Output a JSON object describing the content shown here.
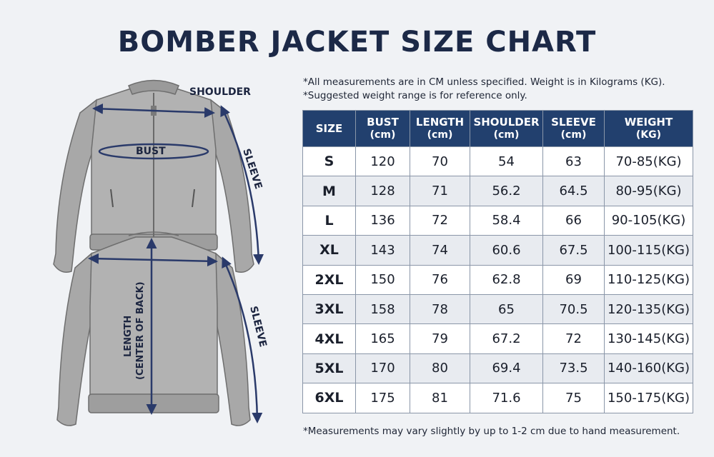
{
  "title": "BOMBER JACKET SIZE CHART",
  "notes": [
    "*All measurements are in CM unless specified. Weight is in Kilograms (KG).",
    "*Suggested weight range is for reference only."
  ],
  "footer_note": "*Measurements may vary slightly by up to 1-2 cm due to hand measurement.",
  "diagram_labels": {
    "shoulder": "SHOULDER",
    "bust": "BUST",
    "sleeve_front": "SLEEVE",
    "sleeve_back": "SLEEVE",
    "length_line1": "LENGTH",
    "length_line2": "(CENTER OF BACK)"
  },
  "table": {
    "headers": [
      {
        "label": "SIZE",
        "unit": ""
      },
      {
        "label": "BUST",
        "unit": "(cm)"
      },
      {
        "label": "LENGTH",
        "unit": "(cm)"
      },
      {
        "label": "SHOULDER",
        "unit": "(cm)"
      },
      {
        "label": "SLEEVE",
        "unit": "(cm)"
      },
      {
        "label": "WEIGHT",
        "unit": "(KG)"
      }
    ],
    "rows": [
      [
        "S",
        "120",
        "70",
        "54",
        "63",
        "70-85(KG)"
      ],
      [
        "M",
        "128",
        "71",
        "56.2",
        "64.5",
        "80-95(KG)"
      ],
      [
        "L",
        "136",
        "72",
        "58.4",
        "66",
        "90-105(KG)"
      ],
      [
        "XL",
        "143",
        "74",
        "60.6",
        "67.5",
        "100-115(KG)"
      ],
      [
        "2XL",
        "150",
        "76",
        "62.8",
        "69",
        "110-125(KG)"
      ],
      [
        "3XL",
        "158",
        "78",
        "65",
        "70.5",
        "120-135(KG)"
      ],
      [
        "4XL",
        "165",
        "79",
        "67.2",
        "72",
        "130-145(KG)"
      ],
      [
        "5XL",
        "170",
        "80",
        "69.4",
        "73.5",
        "140-160(KG)"
      ],
      [
        "6XL",
        "175",
        "81",
        "71.6",
        "75",
        "150-175(KG)"
      ]
    ]
  },
  "colors": {
    "header_bg": "#22406e",
    "title": "#1c2947",
    "arrow": "#2a3a6a",
    "jacket": "#a9a9a9"
  }
}
